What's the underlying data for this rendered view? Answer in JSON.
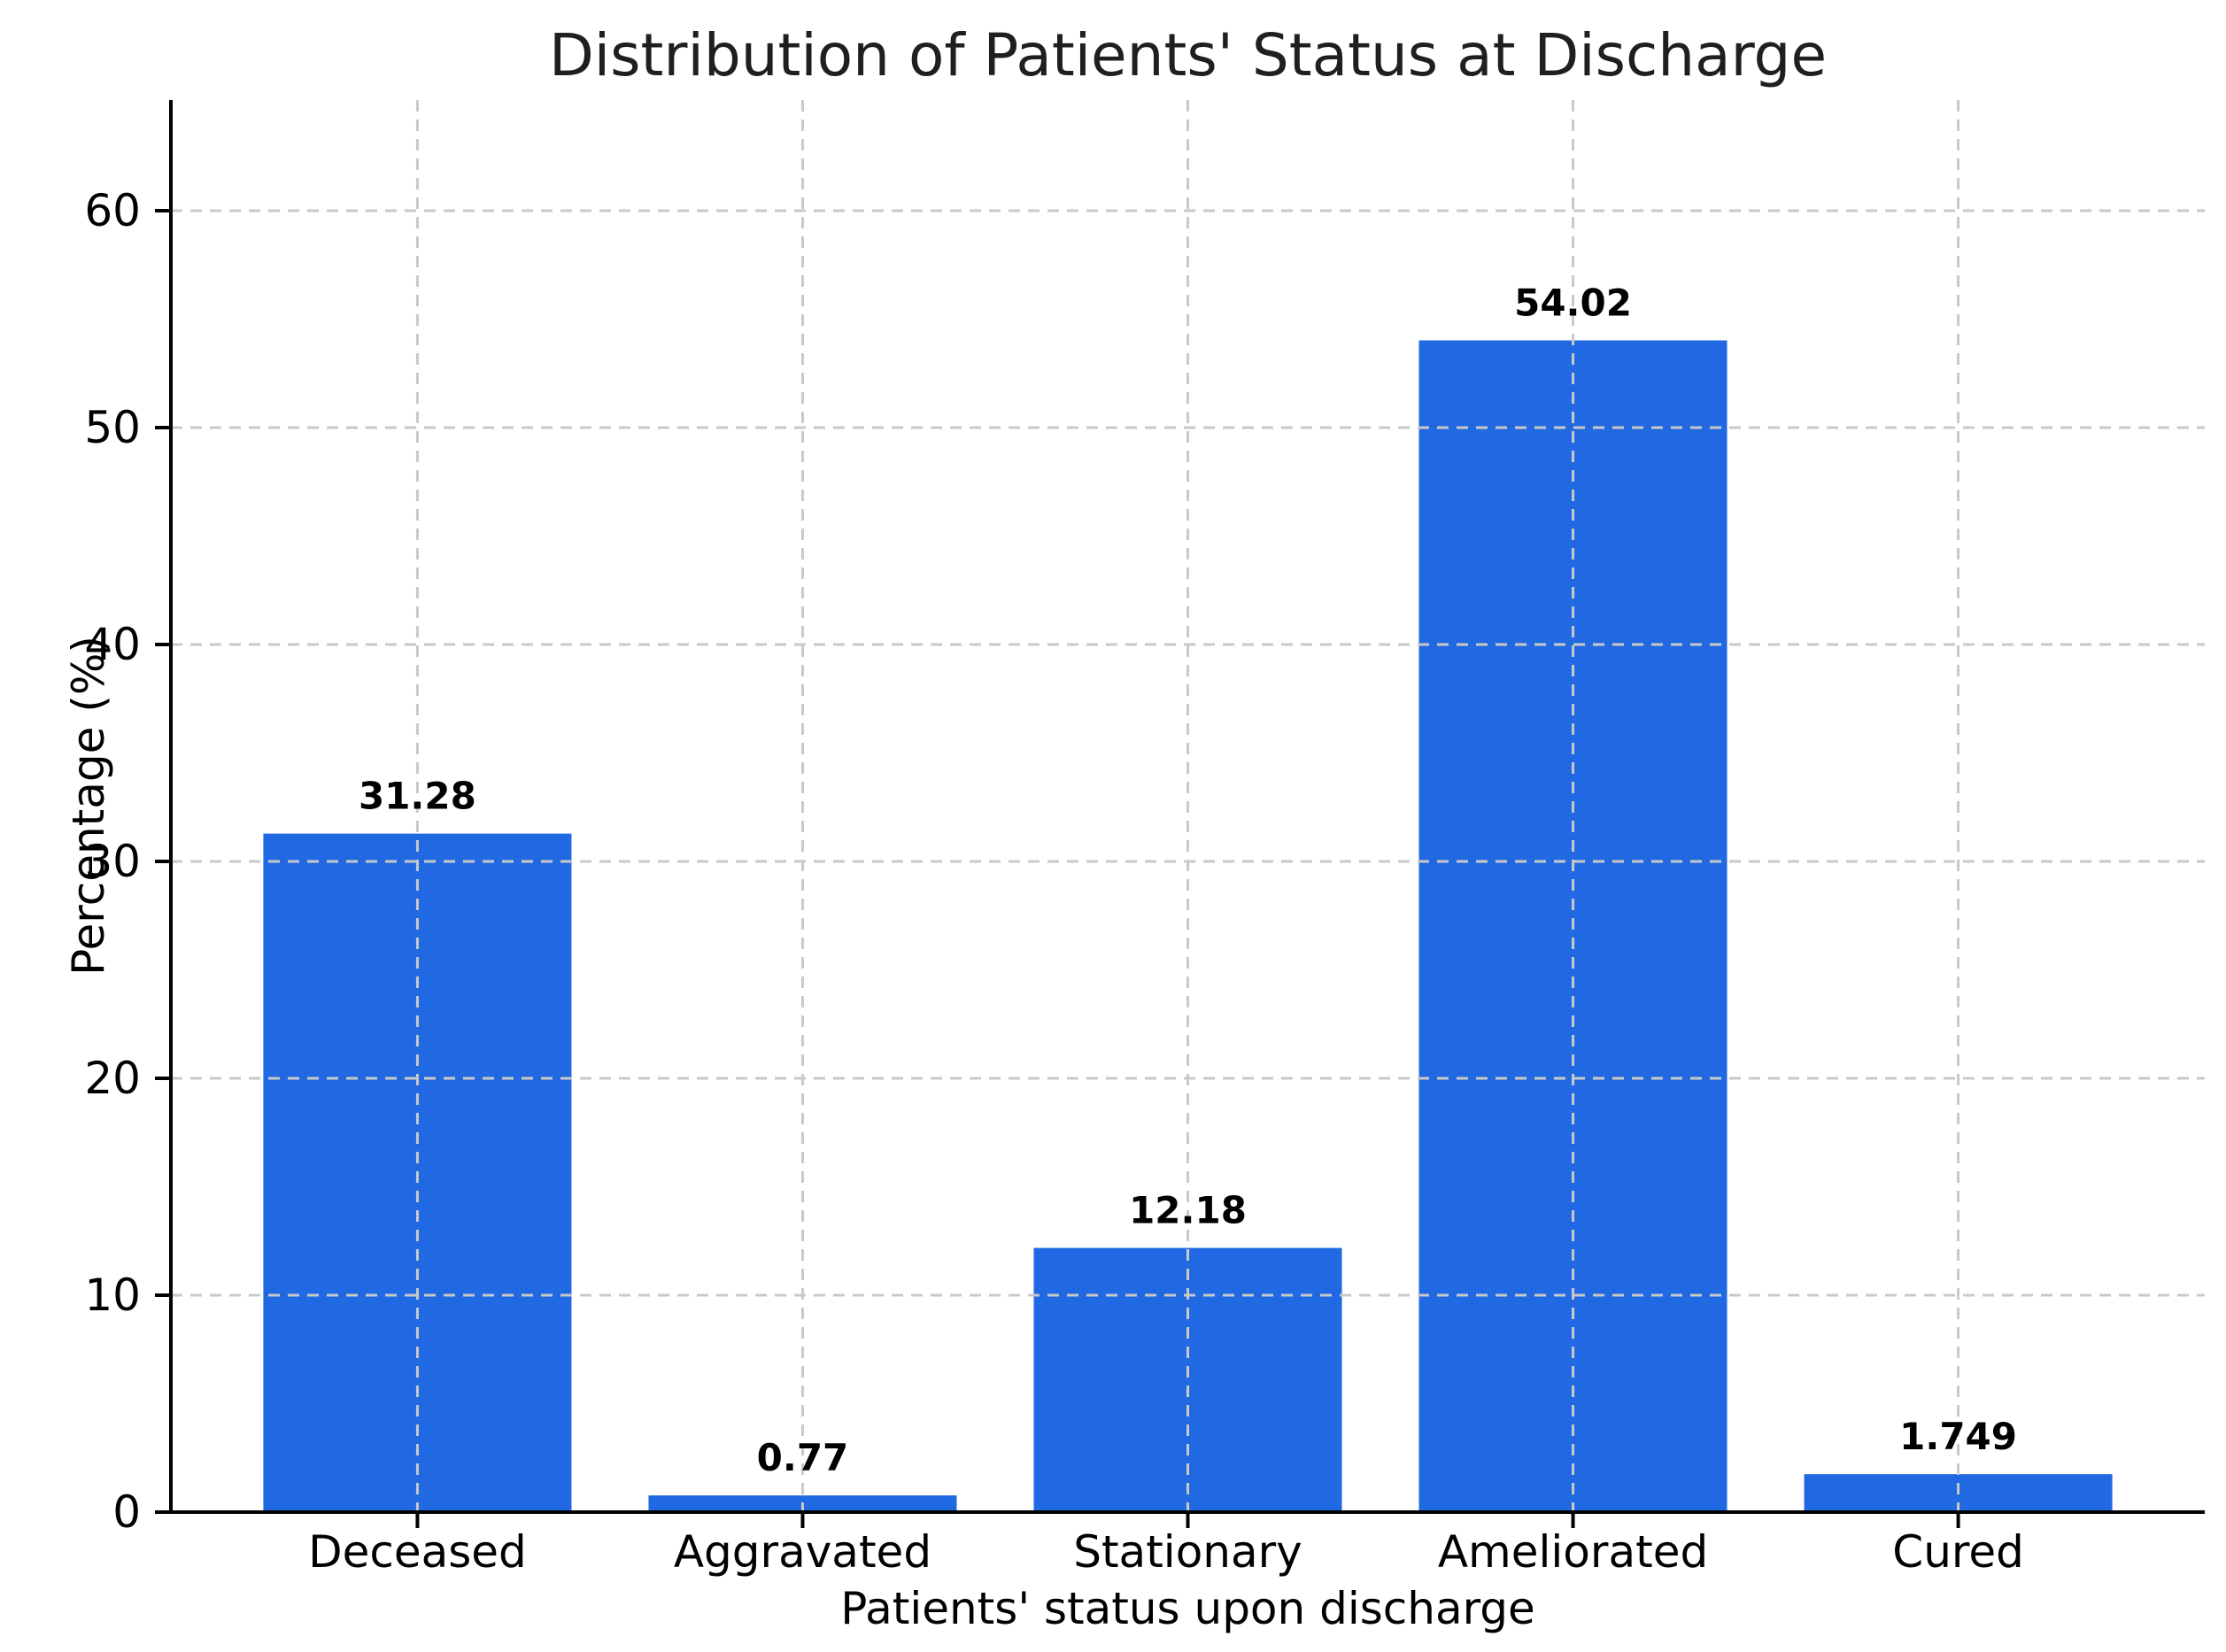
{
  "chart_data": {
    "type": "bar",
    "title": "Distribution of Patients' Status at Discharge",
    "xlabel": "Patients' status upon discharge",
    "ylabel": "Percentage (%)",
    "categories": [
      "Deceased",
      "Aggravated",
      "Stationary",
      "Ameliorated",
      "Cured"
    ],
    "values": [
      31.28,
      0.77,
      12.18,
      54.02,
      1.749
    ],
    "value_labels": [
      "31.28",
      "0.77",
      "12.18",
      "54.02",
      "1.749"
    ],
    "yticks": [
      0,
      10,
      20,
      30,
      40,
      50,
      60
    ],
    "ytick_labels": [
      "0",
      "10",
      "20",
      "30",
      "40",
      "50",
      "60"
    ],
    "ylim": [
      0,
      65.1
    ],
    "bar_color": "#2169E3",
    "grid": "dashed, both axes, drawn above bars",
    "grid_color": "#c9c9c9",
    "axis_color": "#000000",
    "legend_position": "none"
  }
}
